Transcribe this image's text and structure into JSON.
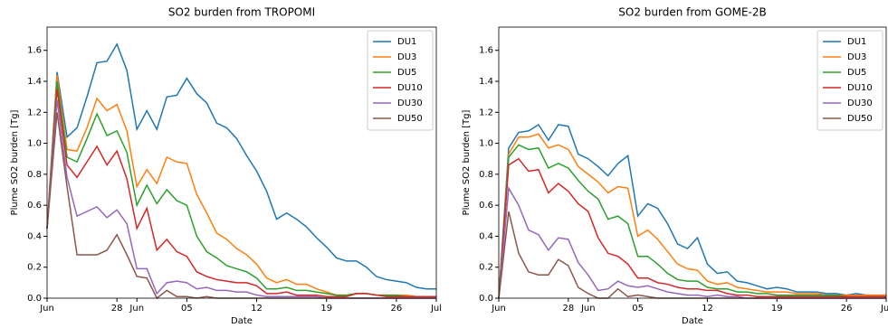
{
  "chart_data": [
    {
      "type": "line",
      "title": "SO2 burden from TROPOMI",
      "xlabel": "Date",
      "ylabel": "Plume SO2 burden [Tg]",
      "x": [
        0,
        1,
        2,
        3,
        4,
        5,
        6,
        7,
        8,
        9,
        10,
        11,
        12,
        13,
        14,
        15,
        16,
        17,
        18,
        19,
        20,
        21,
        22,
        23,
        24,
        25,
        26,
        27,
        28,
        29,
        30,
        31,
        32,
        33,
        34,
        35,
        36,
        37,
        38,
        39
      ],
      "xlim": [
        0,
        39
      ],
      "xticks": [
        {
          "value": 0,
          "label": "Jun"
        },
        {
          "value": 7,
          "label": "28"
        },
        {
          "value": 9,
          "label": "Jun"
        },
        {
          "value": 14,
          "label": "05"
        },
        {
          "value": 21,
          "label": "12"
        },
        {
          "value": 28,
          "label": "19"
        },
        {
          "value": 35,
          "label": "26"
        },
        {
          "value": 39,
          "label": "Jul"
        }
      ],
      "ylim": [
        0,
        1.75
      ],
      "yticks": [
        {
          "value": 0,
          "label": "0.0"
        },
        0.2,
        0.4,
        0.6,
        0.8,
        {
          "value": 1,
          "label": "1.0"
        },
        1.2,
        1.4,
        1.6
      ],
      "legend": "upper right",
      "series": [
        {
          "name": "DU1",
          "color": "#1f77b4",
          "values": [
            0.45,
            1.46,
            1.04,
            1.1,
            1.3,
            1.52,
            1.53,
            1.64,
            1.47,
            1.09,
            1.21,
            1.09,
            1.3,
            1.31,
            1.42,
            1.32,
            1.26,
            1.13,
            1.1,
            1.03,
            0.92,
            0.82,
            0.69,
            0.51,
            0.55,
            0.51,
            0.46,
            0.39,
            0.33,
            0.26,
            0.24,
            0.24,
            0.2,
            0.14,
            0.12,
            0.11,
            0.1,
            0.07,
            0.06,
            0.06
          ]
        },
        {
          "name": "DU3",
          "color": "#ff7f0e",
          "values": [
            0.45,
            1.44,
            0.96,
            0.95,
            1.1,
            1.29,
            1.21,
            1.25,
            1.08,
            0.72,
            0.83,
            0.74,
            0.91,
            0.88,
            0.87,
            0.67,
            0.55,
            0.42,
            0.38,
            0.32,
            0.28,
            0.22,
            0.13,
            0.1,
            0.12,
            0.09,
            0.09,
            0.06,
            0.04,
            0.02,
            0.02,
            0.03,
            0.03,
            0.02,
            0.02,
            0.02,
            0.02,
            0.01,
            0.01,
            0.01
          ]
        },
        {
          "name": "DU5",
          "color": "#2ca02c",
          "values": [
            0.45,
            1.4,
            0.91,
            0.88,
            1.03,
            1.19,
            1.05,
            1.08,
            0.94,
            0.6,
            0.73,
            0.61,
            0.7,
            0.63,
            0.6,
            0.4,
            0.3,
            0.26,
            0.21,
            0.19,
            0.17,
            0.13,
            0.06,
            0.06,
            0.07,
            0.05,
            0.05,
            0.04,
            0.03,
            0.02,
            0.02,
            0.03,
            0.03,
            0.02,
            0.02,
            0.02,
            0.01,
            0.01,
            0.01,
            0.01
          ]
        },
        {
          "name": "DU10",
          "color": "#d62728",
          "values": [
            0.45,
            1.35,
            0.86,
            0.78,
            0.88,
            0.98,
            0.86,
            0.95,
            0.77,
            0.45,
            0.58,
            0.31,
            0.38,
            0.3,
            0.27,
            0.17,
            0.14,
            0.12,
            0.11,
            0.1,
            0.1,
            0.08,
            0.03,
            0.03,
            0.04,
            0.02,
            0.02,
            0.02,
            0.01,
            0.01,
            0.01,
            0.03,
            0.03,
            0.02,
            0.01,
            0.01,
            0.01,
            0.01,
            0.01,
            0.01
          ]
        },
        {
          "name": "DU30",
          "color": "#9467bd",
          "values": [
            0.45,
            1.28,
            0.78,
            0.53,
            0.56,
            0.59,
            0.52,
            0.57,
            0.48,
            0.19,
            0.19,
            0.03,
            0.1,
            0.11,
            0.1,
            0.06,
            0.07,
            0.05,
            0.05,
            0.04,
            0.04,
            0.02,
            0.01,
            0.01,
            0.01,
            0.01,
            0.01,
            0.01,
            0,
            0,
            0,
            0,
            0,
            0,
            0,
            0,
            0,
            0,
            0,
            0
          ]
        },
        {
          "name": "DU50",
          "color": "#8c564b",
          "values": [
            0.45,
            1.2,
            0.72,
            0.28,
            0.28,
            0.28,
            0.31,
            0.41,
            0.28,
            0.14,
            0.13,
            0,
            0.05,
            0.01,
            0.01,
            0,
            0.01,
            0,
            0,
            0,
            0,
            0,
            0,
            0,
            0,
            0,
            0,
            0,
            0,
            0,
            0,
            0,
            0,
            0,
            0,
            0,
            0,
            0,
            0,
            0
          ]
        }
      ]
    },
    {
      "type": "line",
      "title": "SO2 burden from GOME-2B",
      "xlabel": "Date",
      "ylabel": "Plume SO2 burden [Tg]",
      "x": [
        0,
        1,
        2,
        3,
        4,
        5,
        6,
        7,
        8,
        9,
        10,
        11,
        12,
        13,
        14,
        15,
        16,
        17,
        18,
        19,
        20,
        21,
        22,
        23,
        24,
        25,
        26,
        27,
        28,
        29,
        30,
        31,
        32,
        33,
        34,
        35,
        36,
        37,
        38,
        39
      ],
      "xlim": [
        0,
        39
      ],
      "xticks": [
        {
          "value": 0,
          "label": "Jun"
        },
        {
          "value": 7,
          "label": "28"
        },
        {
          "value": 9,
          "label": "Jun"
        },
        {
          "value": 14,
          "label": "05"
        },
        {
          "value": 21,
          "label": "12"
        },
        {
          "value": 28,
          "label": "19"
        },
        {
          "value": 35,
          "label": "26"
        },
        {
          "value": 39,
          "label": "Jul"
        }
      ],
      "ylim": [
        0,
        1.75
      ],
      "yticks": [
        {
          "value": 0,
          "label": "0.0"
        },
        0.2,
        0.4,
        0.6,
        0.8,
        {
          "value": 1,
          "label": "1.0"
        },
        1.2,
        1.4,
        1.6
      ],
      "legend": "upper right",
      "series": [
        {
          "name": "DU1",
          "color": "#1f77b4",
          "values": [
            0,
            0.97,
            1.07,
            1.08,
            1.12,
            1.02,
            1.12,
            1.11,
            0.93,
            0.9,
            0.85,
            0.79,
            0.87,
            0.92,
            0.53,
            0.61,
            0.58,
            0.48,
            0.35,
            0.32,
            0.39,
            0.22,
            0.16,
            0.17,
            0.11,
            0.1,
            0.08,
            0.06,
            0.07,
            0.06,
            0.04,
            0.04,
            0.04,
            0.03,
            0.03,
            0.02,
            0.03,
            0.02,
            0.02,
            0.02
          ]
        },
        {
          "name": "DU3",
          "color": "#ff7f0e",
          "values": [
            0,
            0.93,
            1.04,
            1.04,
            1.06,
            0.97,
            0.99,
            0.96,
            0.85,
            0.8,
            0.75,
            0.68,
            0.72,
            0.71,
            0.4,
            0.44,
            0.38,
            0.3,
            0.22,
            0.19,
            0.18,
            0.11,
            0.09,
            0.1,
            0.07,
            0.06,
            0.05,
            0.04,
            0.04,
            0.04,
            0.03,
            0.03,
            0.03,
            0.02,
            0.02,
            0.02,
            0.02,
            0.02,
            0.02,
            0.02
          ]
        },
        {
          "name": "DU5",
          "color": "#2ca02c",
          "values": [
            0,
            0.91,
            0.99,
            0.96,
            0.97,
            0.84,
            0.87,
            0.84,
            0.76,
            0.69,
            0.64,
            0.51,
            0.53,
            0.48,
            0.27,
            0.27,
            0.22,
            0.16,
            0.12,
            0.11,
            0.11,
            0.07,
            0.06,
            0.06,
            0.04,
            0.04,
            0.03,
            0.03,
            0.02,
            0.02,
            0.02,
            0.02,
            0.02,
            0.02,
            0.02,
            0.01,
            0.01,
            0.01,
            0.01,
            0.01
          ]
        },
        {
          "name": "DU10",
          "color": "#d62728",
          "values": [
            0,
            0.86,
            0.9,
            0.82,
            0.83,
            0.68,
            0.74,
            0.69,
            0.61,
            0.56,
            0.39,
            0.29,
            0.27,
            0.22,
            0.13,
            0.13,
            0.1,
            0.09,
            0.07,
            0.06,
            0.06,
            0.05,
            0.05,
            0.03,
            0.02,
            0.02,
            0.01,
            0.01,
            0.01,
            0.01,
            0.01,
            0.01,
            0.01,
            0.01,
            0.01,
            0.01,
            0.01,
            0.01,
            0.01,
            0.01
          ]
        },
        {
          "name": "DU30",
          "color": "#9467bd",
          "values": [
            0,
            0.71,
            0.6,
            0.44,
            0.41,
            0.31,
            0.39,
            0.38,
            0.23,
            0.15,
            0.05,
            0.06,
            0.11,
            0.08,
            0.07,
            0.08,
            0.06,
            0.04,
            0.03,
            0.02,
            0.02,
            0.01,
            0.02,
            0.01,
            0.01,
            0,
            0,
            0,
            0,
            0,
            0,
            0,
            0,
            0,
            0,
            0,
            0,
            0,
            0,
            0
          ]
        },
        {
          "name": "DU50",
          "color": "#8c564b",
          "values": [
            0,
            0.56,
            0.29,
            0.17,
            0.15,
            0.15,
            0.25,
            0.21,
            0.07,
            0.03,
            0,
            0,
            0.06,
            0.01,
            0.02,
            0.01,
            0,
            0,
            0,
            0,
            0,
            0,
            0,
            0,
            0,
            0,
            0,
            0,
            0,
            0,
            0,
            0,
            0,
            0,
            0,
            0,
            0,
            0,
            0,
            0
          ]
        }
      ]
    }
  ]
}
